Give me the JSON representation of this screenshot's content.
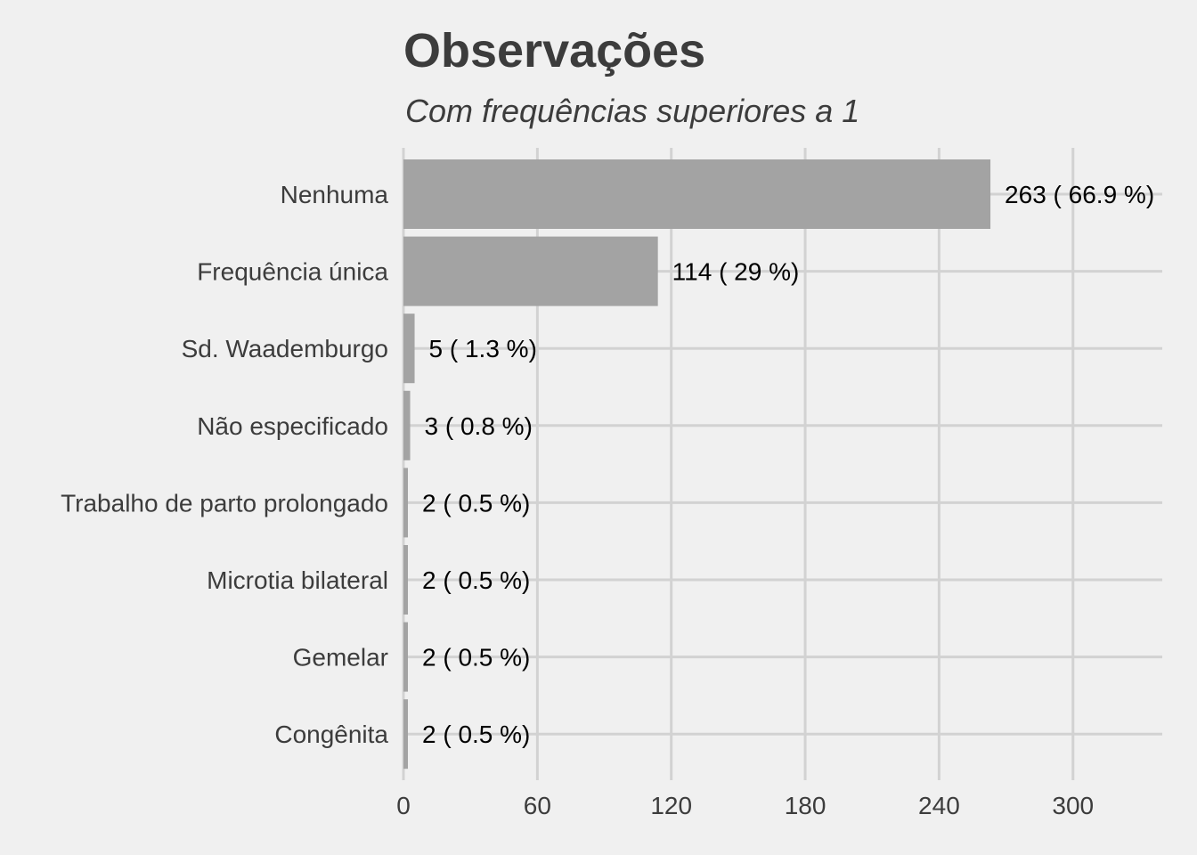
{
  "chart_data": {
    "type": "bar",
    "orientation": "horizontal",
    "title": "Observações",
    "subtitle": "Com frequências superiores a 1",
    "xlabel": "",
    "ylabel": "",
    "categories": [
      "Nenhuma",
      "Frequência única",
      "Sd. Waademburgo",
      "Não especificado",
      "Trabalho de parto prolongado",
      "Microtia bilateral",
      "Gemelar",
      "Congênita"
    ],
    "values": [
      263,
      114,
      5,
      3,
      2,
      2,
      2,
      2
    ],
    "data_labels": [
      "263 ( 66.9 %)",
      "114 ( 29 %)",
      "5 ( 1.3 %)",
      "3 ( 0.8 %)",
      "2 ( 0.5 %)",
      "2 ( 0.5 %)",
      "2 ( 0.5 %)",
      "2 ( 0.5 %)"
    ],
    "xlim": [
      0,
      340
    ],
    "xticks": [
      0,
      60,
      120,
      180,
      240,
      300
    ],
    "xtick_labels": [
      "0",
      "60",
      "120",
      "180",
      "240",
      "300"
    ],
    "grid": true,
    "legend": "none",
    "colors": {
      "background": "#f0f0f0",
      "bar": "#a3a3a3",
      "grid": "#d2d2d2",
      "text": "#3c3c3c",
      "data_label": "#000000"
    }
  }
}
